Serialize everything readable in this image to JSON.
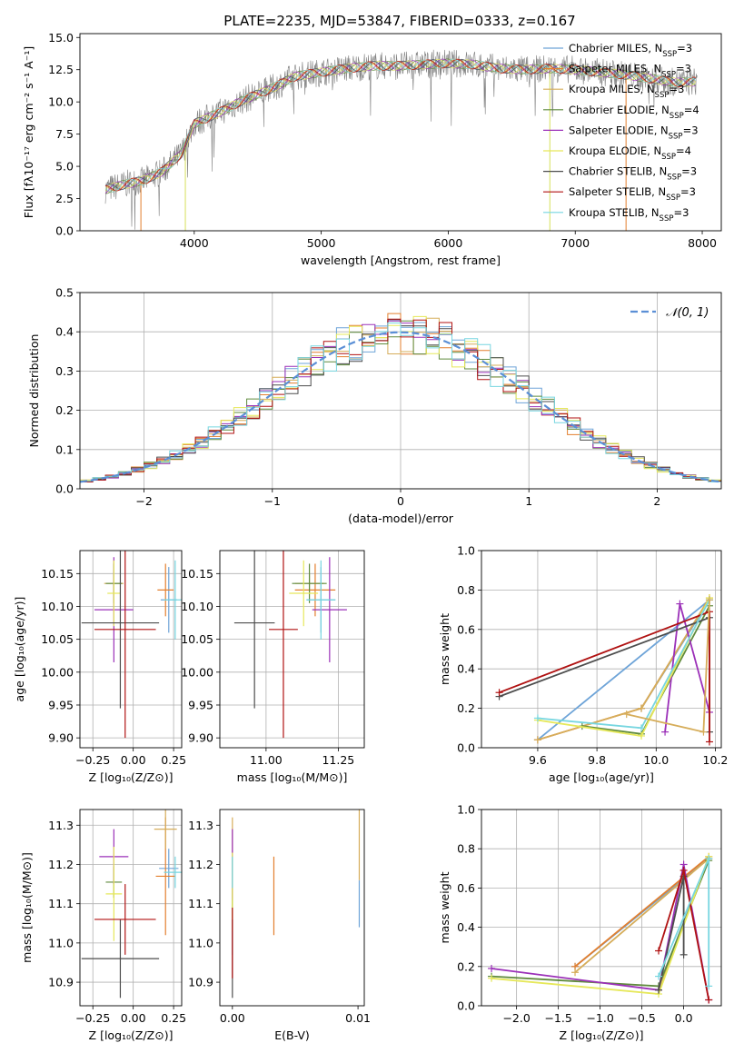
{
  "figure_title": "PLATE=2235, MJD=53847, FIBERID=0333, z=0.167",
  "series_colors": {
    "Chabrier MILES": "#6ea4d8",
    "Salpeter MILES": "#e37f2e",
    "Kroupa MILES": "#d6ad5a",
    "Chabrier ELODIE": "#5f8a3c",
    "Salpeter ELODIE": "#9b30b8",
    "Kroupa ELODIE": "#e6e85a",
    "Chabrier STELIB": "#4d4d4d",
    "Salpeter STELIB": "#b01212",
    "Kroupa STELIB": "#77d6e0"
  },
  "chart_data": [
    {
      "id": "spectrum",
      "type": "line",
      "title": "PLATE=2235, MJD=53847, FIBERID=0333, z=0.167",
      "xlabel": "wavelength [Angstrom, rest frame]",
      "ylabel": "Flux [fλ10⁻¹⁷ erg cm⁻² s⁻¹ A⁻¹]",
      "xlim": [
        3100,
        8150
      ],
      "ylim": [
        0,
        15.3
      ],
      "xticks": [
        "4000",
        "5000",
        "6000",
        "7000",
        "8000"
      ],
      "yticks": [
        "0.0",
        "2.5",
        "5.0",
        "7.5",
        "10.0",
        "12.5",
        "15.0"
      ],
      "data_color": "#808080",
      "legend_position": "right",
      "legend": [
        {
          "label": "Chabrier MILES, N",
          "sub": "SSP",
          "suffix": "=3"
        },
        {
          "label": "Salpeter MILES, N",
          "sub": "SSP",
          "suffix": "=3"
        },
        {
          "label": "Kroupa MILES, N",
          "sub": "SSP",
          "suffix": "=3"
        },
        {
          "label": "Chabrier ELODIE, N",
          "sub": "SSP",
          "suffix": "=4"
        },
        {
          "label": "Salpeter ELODIE, N",
          "sub": "SSP",
          "suffix": "=3"
        },
        {
          "label": "Kroupa ELODIE, N",
          "sub": "SSP",
          "suffix": "=4"
        },
        {
          "label": "Chabrier STELIB, N",
          "sub": "SSP",
          "suffix": "=3"
        },
        {
          "label": "Salpeter STELIB, N",
          "sub": "SSP",
          "suffix": "=3"
        },
        {
          "label": "Kroupa STELIB, N",
          "sub": "SSP",
          "suffix": "=3"
        }
      ],
      "continuum": {
        "wavelength": [
          3300,
          3450,
          3600,
          3750,
          3900,
          4000,
          4200,
          4400,
          4600,
          4800,
          5000,
          5200,
          5400,
          5600,
          5800,
          6000,
          6200,
          6400,
          6600,
          6800,
          7000,
          7200,
          7400,
          7600,
          7800,
          8000
        ],
        "flux": [
          3.2,
          3.6,
          3.9,
          4.6,
          6.0,
          8.3,
          9.2,
          10.2,
          11.0,
          12.0,
          12.3,
          12.6,
          12.8,
          12.8,
          12.9,
          13.0,
          12.9,
          12.6,
          12.5,
          12.6,
          12.5,
          12.3,
          12.1,
          11.8,
          11.5,
          11.6
        ]
      }
    },
    {
      "id": "residuals",
      "type": "histogram",
      "xlabel": "(data-model)/error",
      "ylabel": "Normed distribution",
      "xlim": [
        -2.5,
        2.5
      ],
      "ylim": [
        0,
        0.5
      ],
      "xticks": [
        "−2",
        "−1",
        "0",
        "1",
        "2"
      ],
      "yticks": [
        "0.0",
        "0.1",
        "0.2",
        "0.3",
        "0.4",
        "0.5"
      ],
      "grid": true,
      "legend_position": "top-right",
      "reference_curve": {
        "name": "N(0,1)",
        "label": "𝒩(0, 1)",
        "color": "#5b8fd6",
        "style": "dashed"
      },
      "bin_width": 0.1
    },
    {
      "id": "age_vs_Z",
      "type": "errorbar",
      "xlabel": "Z [log₁₀(Z/Z⊙)]",
      "ylabel": "age [log₁₀(age/yr)]",
      "xlim": [
        -0.33,
        0.3
      ],
      "ylim": [
        9.885,
        10.185
      ],
      "xticks": [
        "−0.25",
        "0.00",
        "0.25"
      ],
      "yticks": [
        "9.90",
        "9.95",
        "10.00",
        "10.05",
        "10.10",
        "10.15"
      ],
      "grid": true,
      "points": [
        {
          "model": "Chabrier MILES",
          "x": 0.22,
          "y": 10.11,
          "xerr": 0.05,
          "yerr": 0.05
        },
        {
          "model": "Salpeter MILES",
          "x": 0.2,
          "y": 10.125,
          "xerr": 0.05,
          "yerr": 0.04
        },
        {
          "model": "Kroupa MILES",
          "x": -0.12,
          "y": 10.135,
          "xerr": 0.06,
          "yerr": 0.015
        },
        {
          "model": "Chabrier ELODIE",
          "x": -0.12,
          "y": 10.135,
          "xerr": 0.05,
          "yerr": 0.03
        },
        {
          "model": "Salpeter ELODIE",
          "x": -0.12,
          "y": 10.095,
          "xerr": 0.12,
          "yerr": 0.08
        },
        {
          "model": "Kroupa ELODIE",
          "x": -0.12,
          "y": 10.12,
          "xerr": 0.04,
          "yerr": 0.05
        },
        {
          "model": "Chabrier STELIB",
          "x": -0.08,
          "y": 10.075,
          "xerr": 0.24,
          "yerr": 0.13
        },
        {
          "model": "Salpeter STELIB",
          "x": -0.05,
          "y": 10.065,
          "xerr": 0.19,
          "yerr": 0.165
        },
        {
          "model": "Kroupa STELIB",
          "x": 0.26,
          "y": 10.11,
          "xerr": 0.07,
          "yerr": 0.06
        }
      ]
    },
    {
      "id": "age_vs_mass",
      "type": "errorbar",
      "xlabel": "mass [log₁₀(M/M⊙)]",
      "xlim": [
        10.84,
        11.34
      ],
      "ylim": [
        9.885,
        10.185
      ],
      "xticks": [
        "11.00",
        "11.25"
      ],
      "yticks": [
        "9.90",
        "9.95",
        "10.00",
        "10.05",
        "10.10",
        "10.15"
      ],
      "grid": true,
      "points": [
        {
          "model": "Chabrier MILES",
          "x": 11.19,
          "y": 10.11,
          "xerr": 0.05,
          "yerr": 0.05
        },
        {
          "model": "Salpeter MILES",
          "x": 11.17,
          "y": 10.125,
          "xerr": 0.07,
          "yerr": 0.04
        },
        {
          "model": "Kroupa MILES",
          "x": 11.15,
          "y": 10.135,
          "xerr": 0.05,
          "yerr": 0.015
        },
        {
          "model": "Chabrier ELODIE",
          "x": 11.15,
          "y": 10.135,
          "xerr": 0.06,
          "yerr": 0.03
        },
        {
          "model": "Salpeter ELODIE",
          "x": 11.22,
          "y": 10.095,
          "xerr": 0.06,
          "yerr": 0.08
        },
        {
          "model": "Kroupa ELODIE",
          "x": 11.13,
          "y": 10.12,
          "xerr": 0.05,
          "yerr": 0.05
        },
        {
          "model": "Chabrier STELIB",
          "x": 10.96,
          "y": 10.075,
          "xerr": 0.07,
          "yerr": 0.13
        },
        {
          "model": "Salpeter STELIB",
          "x": 11.06,
          "y": 10.065,
          "xerr": 0.05,
          "yerr": 0.165
        },
        {
          "model": "Kroupa STELIB",
          "x": 11.19,
          "y": 10.11,
          "xerr": 0.05,
          "yerr": 0.06
        }
      ]
    },
    {
      "id": "weight_vs_age",
      "type": "line",
      "xlabel": "age [log₁₀(age/yr)]",
      "ylabel": "mass weight",
      "xlim": [
        9.41,
        10.22
      ],
      "ylim": [
        0,
        1
      ],
      "xticks": [
        "9.6",
        "9.8",
        "10.0",
        "10.2"
      ],
      "yticks": [
        "0.0",
        "0.2",
        "0.4",
        "0.6",
        "0.8",
        "1.0"
      ],
      "grid": true,
      "series": [
        {
          "name": "Chabrier MILES",
          "x": [
            9.6,
            10.18,
            9.95
          ],
          "y": [
            0.04,
            0.75,
            0.2
          ]
        },
        {
          "name": "Salpeter MILES",
          "x": [
            9.6,
            9.95,
            10.18
          ],
          "y": [
            0.04,
            0.2,
            0.76
          ]
        },
        {
          "name": "Kroupa MILES",
          "x": [
            9.6,
            9.95,
            10.18
          ],
          "y": [
            0.04,
            0.2,
            0.76
          ]
        },
        {
          "name": "Chabrier ELODIE",
          "x": [
            9.75,
            9.95,
            10.18
          ],
          "y": [
            0.11,
            0.07,
            0.72
          ]
        },
        {
          "name": "Salpeter ELODIE",
          "x": [
            10.03,
            10.08,
            10.18
          ],
          "y": [
            0.08,
            0.73,
            0.18
          ]
        },
        {
          "name": "Kroupa ELODIE",
          "x": [
            9.6,
            9.95,
            10.18
          ],
          "y": [
            0.14,
            0.06,
            0.76
          ]
        },
        {
          "name": "Chabrier STELIB",
          "x": [
            9.47,
            10.18,
            10.18
          ],
          "y": [
            0.26,
            0.66,
            0.08
          ]
        },
        {
          "name": "Salpeter STELIB",
          "x": [
            9.47,
            10.18,
            10.18
          ],
          "y": [
            0.28,
            0.69,
            0.03
          ]
        },
        {
          "name": "Kroupa STELIB",
          "x": [
            9.6,
            9.95,
            10.18
          ],
          "y": [
            0.15,
            0.1,
            0.75
          ]
        },
        {
          "name": "Kroupa MILES (pink)",
          "x": [
            9.9,
            10.16,
            10.18
          ],
          "y": [
            0.17,
            0.08,
            0.75
          ]
        }
      ]
    },
    {
      "id": "mass_vs_Z",
      "type": "errorbar",
      "xlabel": "Z [log₁₀(Z/Z⊙)]",
      "ylabel": "mass [log₁₀(M/M⊙)]",
      "xlim": [
        -0.33,
        0.3
      ],
      "ylim": [
        10.84,
        11.34
      ],
      "xticks": [
        "−0.25",
        "0.00",
        "0.25"
      ],
      "yticks": [
        "10.9",
        "11.0",
        "11.1",
        "11.2",
        "11.3"
      ],
      "grid": true,
      "points": [
        {
          "model": "Chabrier MILES",
          "x": 0.22,
          "y": 11.19,
          "xerr": 0.06,
          "yerr": 0.05
        },
        {
          "model": "Salpeter MILES",
          "x": 0.2,
          "y": 11.17,
          "xerr": 0.06,
          "yerr": 0.15
        },
        {
          "model": "Kroupa MILES",
          "x": 0.2,
          "y": 11.29,
          "xerr": 0.07,
          "yerr": 0.05
        },
        {
          "model": "Chabrier ELODIE",
          "x": -0.12,
          "y": 11.155,
          "xerr": 0.05,
          "yerr": 0.04
        },
        {
          "model": "Salpeter ELODIE",
          "x": -0.12,
          "y": 11.22,
          "xerr": 0.09,
          "yerr": 0.07
        },
        {
          "model": "Kroupa ELODIE",
          "x": -0.12,
          "y": 11.125,
          "xerr": 0.05,
          "yerr": 0.12
        },
        {
          "model": "Chabrier STELIB",
          "x": -0.08,
          "y": 10.96,
          "xerr": 0.24,
          "yerr": 0.1
        },
        {
          "model": "Salpeter STELIB",
          "x": -0.05,
          "y": 11.06,
          "xerr": 0.19,
          "yerr": 0.09
        },
        {
          "model": "Kroupa STELIB",
          "x": 0.26,
          "y": 11.18,
          "xerr": 0.07,
          "yerr": 0.04
        }
      ]
    },
    {
      "id": "mass_vs_ebv",
      "type": "errorbar",
      "xlabel": "E(B-V)",
      "xlim": [
        -0.001,
        0.0105
      ],
      "ylim": [
        10.84,
        11.34
      ],
      "xticks": [
        "0.00",
        "0.01"
      ],
      "yticks": [
        "10.9",
        "11.0",
        "11.1",
        "11.2",
        "11.3"
      ],
      "points": [
        {
          "model": "Chabrier MILES",
          "x": 0.0,
          "y": 11.1,
          "yerr": 0.13
        },
        {
          "model": "Salpeter MILES",
          "x": 0.0033,
          "y": 11.12,
          "yerr": 0.1
        },
        {
          "model": "Kroupa MILES",
          "x": 0.0,
          "y": 11.19,
          "yerr": 0.13
        },
        {
          "model": "Chabrier ELODIE",
          "x": 0.0,
          "y": 11.14,
          "yerr": 0.08
        },
        {
          "model": "Salpeter ELODIE",
          "x": 0.0,
          "y": 11.2,
          "yerr": 0.09
        },
        {
          "model": "Kroupa ELODIE",
          "x": 0.0,
          "y": 11.13,
          "yerr": 0.1
        },
        {
          "model": "Chabrier STELIB",
          "x": 0.0,
          "y": 10.96,
          "yerr": 0.1
        },
        {
          "model": "Salpeter STELIB",
          "x": 0.0,
          "y": 11.0,
          "yerr": 0.09
        },
        {
          "model": "Kroupa STELIB",
          "x": 0.0,
          "y": 11.18,
          "yerr": 0.04
        },
        {
          "model": "Chabrier MILES (b)",
          "x": 0.0101,
          "y": 11.1,
          "yerr": 0.06
        },
        {
          "model": "Kroupa MILES (b)",
          "x": 0.0101,
          "y": 11.25,
          "yerr": 0.09
        }
      ]
    },
    {
      "id": "weight_vs_Z",
      "type": "line",
      "xlabel": "Z [log₁₀(Z/Z⊙)]",
      "ylabel": "mass weight",
      "xlim": [
        -2.42,
        0.45
      ],
      "ylim": [
        0,
        1
      ],
      "xticks": [
        "−2.0",
        "−1.5",
        "−1.0",
        "−0.5",
        "0.0"
      ],
      "yticks": [
        "0.0",
        "0.2",
        "0.4",
        "0.6",
        "0.8",
        "1.0"
      ],
      "grid": true,
      "series": [
        {
          "name": "Chabrier MILES",
          "x": [
            -1.3,
            0.3,
            -0.3
          ],
          "y": [
            0.2,
            0.75,
            0.1
          ]
        },
        {
          "name": "Salpeter MILES",
          "x": [
            -1.3,
            0.3
          ],
          "y": [
            0.2,
            0.76
          ]
        },
        {
          "name": "Kroupa MILES",
          "x": [
            -1.3,
            0.3,
            -0.3
          ],
          "y": [
            0.17,
            0.75,
            0.08
          ]
        },
        {
          "name": "Chabrier ELODIE",
          "x": [
            -2.3,
            -0.3,
            0.3
          ],
          "y": [
            0.15,
            0.1,
            0.74
          ]
        },
        {
          "name": "Salpeter ELODIE",
          "x": [
            -2.3,
            -0.3,
            0.0,
            0.3
          ],
          "y": [
            0.19,
            0.08,
            0.72,
            0.03
          ]
        },
        {
          "name": "Kroupa ELODIE",
          "x": [
            -2.3,
            -0.3,
            0.3
          ],
          "y": [
            0.14,
            0.06,
            0.76
          ]
        },
        {
          "name": "Chabrier STELIB",
          "x": [
            -0.3,
            0.0,
            0.0
          ],
          "y": [
            0.08,
            0.66,
            0.26
          ]
        },
        {
          "name": "Salpeter STELIB",
          "x": [
            -0.3,
            0.0,
            0.3
          ],
          "y": [
            0.28,
            0.69,
            0.03
          ]
        },
        {
          "name": "Kroupa STELIB",
          "x": [
            -0.3,
            0.3,
            0.3
          ],
          "y": [
            0.15,
            0.75,
            0.1
          ]
        }
      ]
    }
  ]
}
